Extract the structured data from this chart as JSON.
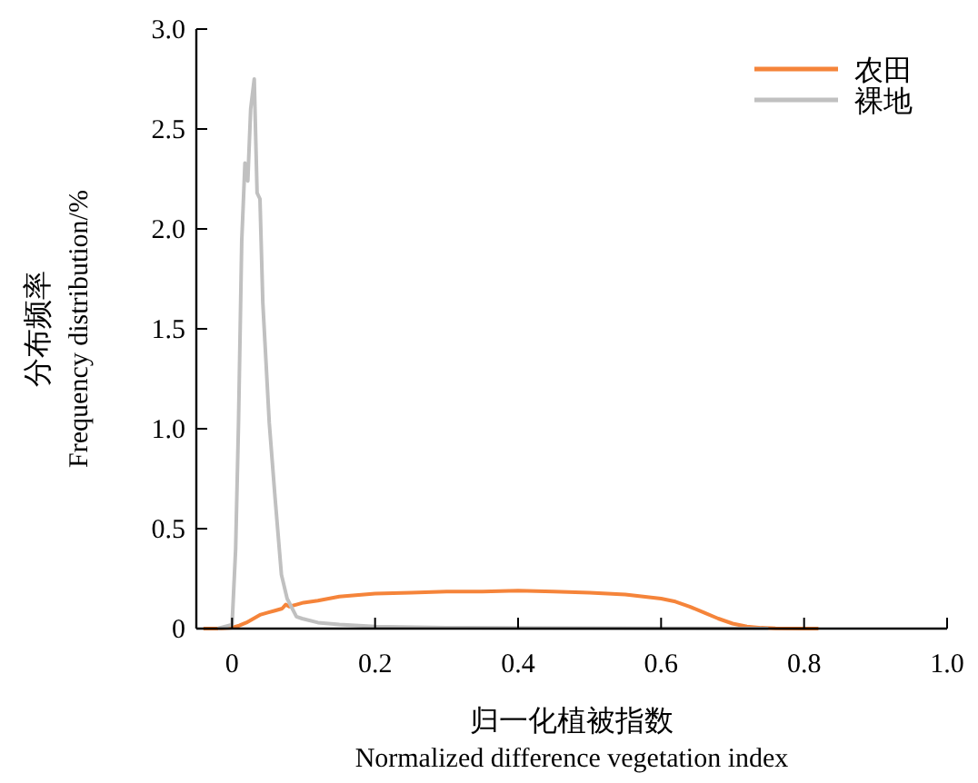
{
  "chart_data": {
    "type": "line",
    "xlabel": "归一化植被指数\nNormalized difference vegetation index",
    "ylabel": "分布频率\nFrequency distribution/%",
    "xlim": [
      -0.05,
      1.0
    ],
    "ylim": [
      0,
      3.0
    ],
    "xticks": [
      0,
      0.2,
      0.4,
      0.6,
      0.8,
      {
        "value": 1.0,
        "label": "1.0"
      }
    ],
    "yticks": [
      0,
      0.5,
      {
        "value": 1.0,
        "label": "1.0"
      },
      1.5,
      {
        "value": 2.0,
        "label": "2.0"
      },
      2.5,
      {
        "value": 3.0,
        "label": "3.0"
      }
    ],
    "grid": false,
    "legend": "top right",
    "marker": "none",
    "line_style": "solid",
    "series": [
      {
        "name": "农田",
        "color": "#f5843a",
        "x": [
          -0.04,
          -0.02,
          0.0,
          0.01,
          0.02,
          0.03,
          0.04,
          0.05,
          0.06,
          0.07,
          0.075,
          0.08,
          0.09,
          0.1,
          0.12,
          0.15,
          0.2,
          0.25,
          0.3,
          0.35,
          0.4,
          0.45,
          0.5,
          0.55,
          0.6,
          0.62,
          0.64,
          0.66,
          0.68,
          0.7,
          0.72,
          0.74,
          0.76,
          0.8,
          0.82
        ],
        "values": [
          0,
          0,
          0.005,
          0.015,
          0.03,
          0.05,
          0.07,
          0.08,
          0.09,
          0.1,
          0.12,
          0.11,
          0.12,
          0.13,
          0.14,
          0.16,
          0.175,
          0.18,
          0.185,
          0.185,
          0.19,
          0.185,
          0.18,
          0.17,
          0.15,
          0.135,
          0.11,
          0.08,
          0.05,
          0.025,
          0.01,
          0.004,
          0.001,
          0,
          0
        ]
      },
      {
        "name": "裸地",
        "color": "#c0c0c0",
        "x": [
          -0.02,
          0.0,
          0.005,
          0.009,
          0.0135,
          0.018,
          0.022,
          0.026,
          0.031,
          0.035,
          0.039,
          0.043,
          0.052,
          0.06,
          0.069,
          0.077,
          0.09,
          0.098,
          0.12,
          0.15,
          0.2,
          0.3,
          0.4,
          0.5,
          0.6,
          0.75
        ],
        "values": [
          0,
          0.02,
          0.4,
          1.03,
          1.94,
          2.33,
          2.24,
          2.6,
          2.75,
          2.18,
          2.15,
          1.63,
          1.03,
          0.66,
          0.27,
          0.15,
          0.06,
          0.05,
          0.03,
          0.02,
          0.01,
          0.005,
          0.003,
          0.002,
          0.001,
          0
        ]
      }
    ]
  }
}
